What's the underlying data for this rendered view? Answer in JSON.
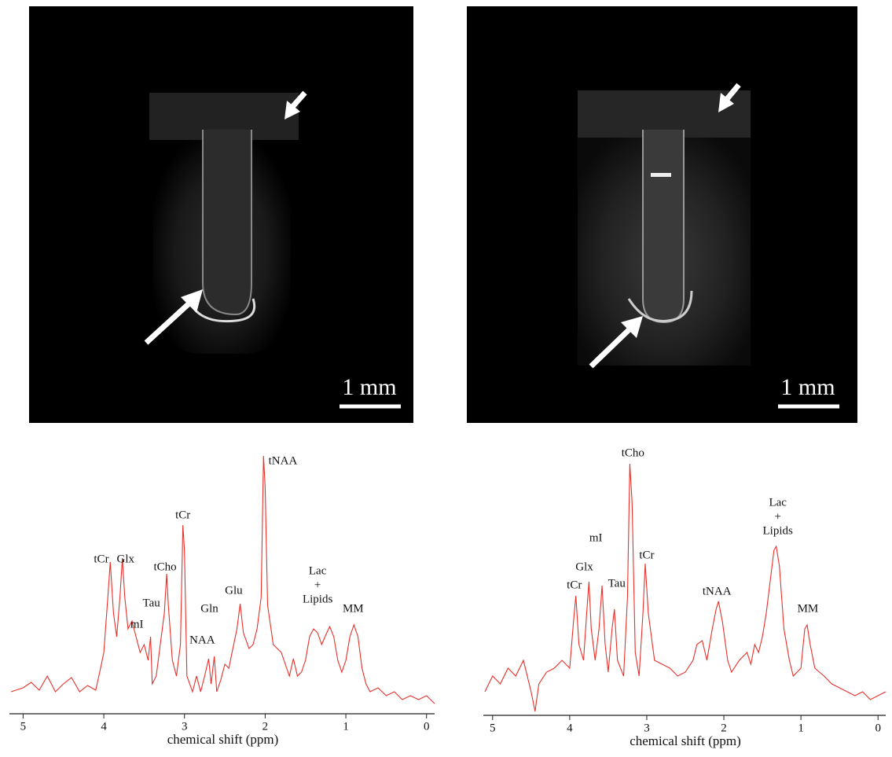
{
  "images": [
    {
      "scale_label": "1 mm"
    },
    {
      "scale_label": "1 mm"
    }
  ],
  "chart_data": [
    {
      "type": "line",
      "xlabel": "chemical shift (ppm)",
      "xlim": [
        5.15,
        -0.1
      ],
      "xticks": [
        5,
        4,
        3,
        2,
        1,
        0
      ],
      "ylim": [
        0,
        340
      ],
      "x": [
        5.15,
        5.0,
        4.9,
        4.8,
        4.7,
        4.6,
        4.5,
        4.4,
        4.3,
        4.2,
        4.1,
        4.05,
        4.0,
        3.95,
        3.92,
        3.88,
        3.84,
        3.8,
        3.77,
        3.74,
        3.7,
        3.65,
        3.6,
        3.55,
        3.5,
        3.45,
        3.42,
        3.4,
        3.35,
        3.3,
        3.25,
        3.22,
        3.2,
        3.15,
        3.1,
        3.05,
        3.02,
        3.0,
        2.97,
        2.9,
        2.85,
        2.8,
        2.75,
        2.7,
        2.67,
        2.63,
        2.6,
        2.55,
        2.5,
        2.45,
        2.4,
        2.35,
        2.31,
        2.27,
        2.2,
        2.15,
        2.1,
        2.05,
        2.02,
        2.0,
        1.97,
        1.9,
        1.8,
        1.7,
        1.65,
        1.6,
        1.55,
        1.5,
        1.45,
        1.4,
        1.35,
        1.3,
        1.25,
        1.2,
        1.15,
        1.1,
        1.05,
        1.0,
        0.95,
        0.9,
        0.85,
        0.8,
        0.75,
        0.7,
        0.6,
        0.5,
        0.4,
        0.3,
        0.2,
        0.1,
        0.0,
        -0.1
      ],
      "series": [
        {
          "color": "#e8302a",
          "values": [
            30,
            35,
            42,
            32,
            50,
            30,
            40,
            48,
            30,
            38,
            32,
            55,
            80,
            150,
            195,
            130,
            100,
            150,
            200,
            150,
            110,
            120,
            100,
            80,
            90,
            70,
            100,
            40,
            50,
            90,
            130,
            180,
            140,
            70,
            50,
            90,
            242,
            210,
            50,
            30,
            50,
            30,
            50,
            72,
            40,
            75,
            30,
            45,
            65,
            60,
            85,
            110,
            142,
            105,
            85,
            90,
            110,
            150,
            330,
            290,
            140,
            90,
            80,
            50,
            72,
            50,
            55,
            70,
            100,
            110,
            105,
            90,
            102,
            113,
            100,
            70,
            55,
            70,
            100,
            115,
            100,
            60,
            40,
            30,
            35,
            25,
            30,
            20,
            25,
            20,
            25,
            15
          ]
        }
      ],
      "annotations": [
        {
          "text": "tCr",
          "x": 4.03,
          "y": 198
        },
        {
          "text": "Glx",
          "x": 3.73,
          "y": 198
        },
        {
          "text": "mI",
          "x": 3.59,
          "y": 115
        },
        {
          "text": "Tau",
          "x": 3.41,
          "y": 142
        },
        {
          "text": "tCho",
          "x": 3.24,
          "y": 188
        },
        {
          "text": "tCr",
          "x": 3.02,
          "y": 254
        },
        {
          "text": "NAA",
          "x": 2.78,
          "y": 95
        },
        {
          "text": "Gln",
          "x": 2.69,
          "y": 135
        },
        {
          "text": "Glu",
          "x": 2.39,
          "y": 158
        },
        {
          "text": "tNAA",
          "x": 1.78,
          "y": 323
        },
        {
          "text": [
            "Lac",
            "+",
            "Lipids"
          ],
          "x": 1.35,
          "y": 165
        },
        {
          "text": "MM",
          "x": 0.91,
          "y": 135
        }
      ]
    },
    {
      "type": "line",
      "xlabel": "chemical shift (ppm)",
      "xlim": [
        5.1,
        -0.1
      ],
      "xticks": [
        5,
        4,
        3,
        2,
        1,
        0
      ],
      "ylim": [
        0,
        340
      ],
      "x": [
        5.1,
        5.0,
        4.9,
        4.8,
        4.7,
        4.6,
        4.5,
        4.45,
        4.4,
        4.3,
        4.2,
        4.1,
        4.0,
        3.95,
        3.92,
        3.88,
        3.82,
        3.78,
        3.75,
        3.72,
        3.67,
        3.62,
        3.58,
        3.54,
        3.5,
        3.45,
        3.42,
        3.38,
        3.3,
        3.25,
        3.22,
        3.19,
        3.15,
        3.1,
        3.05,
        3.02,
        2.98,
        2.9,
        2.8,
        2.7,
        2.6,
        2.5,
        2.4,
        2.35,
        2.28,
        2.22,
        2.15,
        2.1,
        2.07,
        2.02,
        1.95,
        1.9,
        1.8,
        1.7,
        1.65,
        1.6,
        1.55,
        1.5,
        1.45,
        1.4,
        1.35,
        1.32,
        1.28,
        1.22,
        1.15,
        1.1,
        1.0,
        0.95,
        0.92,
        0.88,
        0.82,
        0.7,
        0.6,
        0.5,
        0.4,
        0.3,
        0.2,
        0.1,
        0.0,
        -0.1
      ],
      "series": [
        {
          "color": "#e8302a",
          "values": [
            30,
            50,
            40,
            60,
            50,
            70,
            30,
            5,
            40,
            55,
            60,
            70,
            60,
            120,
            152,
            90,
            70,
            130,
            170,
            110,
            70,
            110,
            165,
            90,
            55,
            110,
            135,
            70,
            50,
            150,
            320,
            270,
            80,
            50,
            130,
            193,
            130,
            70,
            65,
            60,
            50,
            55,
            70,
            90,
            95,
            70,
            110,
            135,
            145,
            120,
            70,
            55,
            70,
            80,
            65,
            90,
            80,
            100,
            130,
            170,
            210,
            215,
            190,
            110,
            70,
            50,
            60,
            110,
            115,
            90,
            60,
            50,
            40,
            35,
            30,
            25,
            30,
            20,
            25,
            30
          ]
        }
      ],
      "annotations": [
        {
          "text": "tCr",
          "x": 3.94,
          "y": 165
        },
        {
          "text": "Glx",
          "x": 3.81,
          "y": 188
        },
        {
          "text": "mI",
          "x": 3.66,
          "y": 225
        },
        {
          "text": "Tau",
          "x": 3.39,
          "y": 167
        },
        {
          "text": "tCho",
          "x": 3.18,
          "y": 333
        },
        {
          "text": "tCr",
          "x": 3.0,
          "y": 203
        },
        {
          "text": "tNAA",
          "x": 2.09,
          "y": 157
        },
        {
          "text": [
            "Lac",
            "+",
            "Lipids"
          ],
          "x": 1.3,
          "y": 252
        },
        {
          "text": "MM",
          "x": 0.91,
          "y": 135
        }
      ]
    }
  ]
}
